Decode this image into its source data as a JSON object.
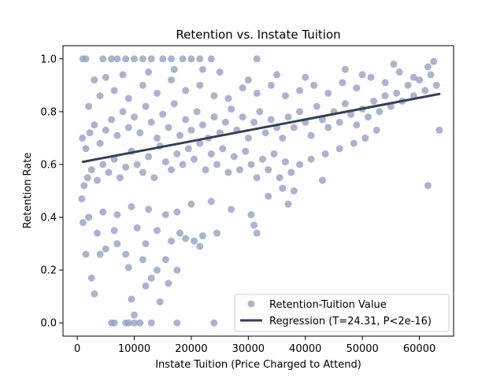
{
  "chart_data": {
    "type": "scatter",
    "title": "Retention vs. Instate Tuition",
    "xlabel": "Instate Tuition (Price Charged to Attend)",
    "ylabel": "Retention Rate",
    "xlim": [
      -2500,
      66000
    ],
    "ylim": [
      -0.05,
      1.05
    ],
    "xticks": [
      0,
      10000,
      20000,
      30000,
      40000,
      50000,
      60000
    ],
    "xtick_labels": [
      "0",
      "10000",
      "20000",
      "30000",
      "40000",
      "50000",
      "60000"
    ],
    "yticks": [
      0.0,
      0.2,
      0.4,
      0.6,
      0.8,
      1.0
    ],
    "ytick_labels": [
      "0.0",
      "0.2",
      "0.4",
      "0.6",
      "0.8",
      "1.0"
    ],
    "grid": false,
    "legend_position": "lower right",
    "colors": {
      "points": "#96a1c2",
      "regression": "#334155"
    },
    "series": [
      {
        "name": "Retention-Tuition Value",
        "kind": "scatter",
        "points": [
          [
            1000,
            1.0
          ],
          [
            1500,
            1.0
          ],
          [
            4500,
            1.0
          ],
          [
            6000,
            1.0
          ],
          [
            7000,
            1.0
          ],
          [
            8500,
            1.0
          ],
          [
            10000,
            1.0
          ],
          [
            11500,
            1.0
          ],
          [
            13000,
            1.0
          ],
          [
            15000,
            1.0
          ],
          [
            16500,
            1.0
          ],
          [
            18500,
            1.0
          ],
          [
            20000,
            1.0
          ],
          [
            21500,
            1.0
          ],
          [
            23500,
            1.0
          ],
          [
            31500,
            1.0
          ],
          [
            6000,
            0.0
          ],
          [
            6500,
            0.0
          ],
          [
            8500,
            0.0
          ],
          [
            9000,
            0.0
          ],
          [
            10000,
            0.0
          ],
          [
            11000,
            0.0
          ],
          [
            13000,
            0.0
          ],
          [
            17500,
            0.0
          ],
          [
            24000,
            0.0
          ],
          [
            10000,
            0.03
          ],
          [
            9500,
            0.09
          ],
          [
            14500,
            0.08
          ],
          [
            3000,
            0.11
          ],
          [
            2500,
            0.17
          ],
          [
            12000,
            0.14
          ],
          [
            16000,
            0.15
          ],
          [
            13000,
            0.17
          ],
          [
            17500,
            0.2
          ],
          [
            9000,
            0.21
          ],
          [
            14000,
            0.2
          ],
          [
            11500,
            0.24
          ],
          [
            15500,
            0.24
          ],
          [
            4000,
            0.26
          ],
          [
            5000,
            0.28
          ],
          [
            1500,
            0.26
          ],
          [
            8500,
            0.26
          ],
          [
            7000,
            0.3
          ],
          [
            12000,
            0.3
          ],
          [
            16500,
            0.31
          ],
          [
            19000,
            0.32
          ],
          [
            3500,
            0.34
          ],
          [
            6500,
            0.35
          ],
          [
            10500,
            0.36
          ],
          [
            14000,
            0.35
          ],
          [
            18000,
            0.34
          ],
          [
            22000,
            0.33
          ],
          [
            24500,
            0.34
          ],
          [
            20500,
            0.31
          ],
          [
            21500,
            0.29
          ],
          [
            31500,
            0.34
          ],
          [
            31000,
            0.37
          ],
          [
            37000,
            0.45
          ],
          [
            43000,
            0.54
          ],
          [
            1000,
            0.38
          ],
          [
            2000,
            0.4
          ],
          [
            4500,
            0.42
          ],
          [
            7000,
            0.41
          ],
          [
            9500,
            0.44
          ],
          [
            12500,
            0.43
          ],
          [
            15500,
            0.41
          ],
          [
            17500,
            0.42
          ],
          [
            20000,
            0.45
          ],
          [
            23500,
            0.46
          ],
          [
            27000,
            0.43
          ],
          [
            30500,
            0.41
          ],
          [
            33500,
            0.48
          ],
          [
            36000,
            0.51
          ],
          [
            38000,
            0.5
          ],
          [
            61500,
            0.52
          ],
          [
            800,
            0.47
          ],
          [
            1200,
            0.52
          ],
          [
            1800,
            0.55
          ],
          [
            2500,
            0.58
          ],
          [
            3500,
            0.54
          ],
          [
            4500,
            0.6
          ],
          [
            5500,
            0.57
          ],
          [
            6500,
            0.62
          ],
          [
            7500,
            0.55
          ],
          [
            8500,
            0.59
          ],
          [
            9500,
            0.65
          ],
          [
            10500,
            0.6
          ],
          [
            11500,
            0.57
          ],
          [
            12500,
            0.63
          ],
          [
            13500,
            0.55
          ],
          [
            14500,
            0.67
          ],
          [
            15500,
            0.61
          ],
          [
            16500,
            0.58
          ],
          [
            17500,
            0.64
          ],
          [
            18500,
            0.6
          ],
          [
            19500,
            0.66
          ],
          [
            20500,
            0.62
          ],
          [
            21500,
            0.68
          ],
          [
            22500,
            0.58
          ],
          [
            23500,
            0.64
          ],
          [
            24500,
            0.6
          ],
          [
            25500,
            0.66
          ],
          [
            26500,
            0.57
          ],
          [
            27500,
            0.63
          ],
          [
            28500,
            0.58
          ],
          [
            29500,
            0.65
          ],
          [
            30500,
            0.6
          ],
          [
            31500,
            0.55
          ],
          [
            32500,
            0.62
          ],
          [
            33500,
            0.58
          ],
          [
            34500,
            0.64
          ],
          [
            35500,
            0.55
          ],
          [
            36500,
            0.61
          ],
          [
            37500,
            0.57
          ],
          [
            39000,
            0.6
          ],
          [
            41000,
            0.62
          ],
          [
            43500,
            0.64
          ],
          [
            46000,
            0.66
          ],
          [
            48500,
            0.68
          ],
          [
            50500,
            0.7
          ],
          [
            52500,
            0.73
          ],
          [
            900,
            0.7
          ],
          [
            1500,
            0.66
          ],
          [
            2200,
            0.72
          ],
          [
            3000,
            0.75
          ],
          [
            4000,
            0.68
          ],
          [
            5000,
            0.73
          ],
          [
            6000,
            0.77
          ],
          [
            7000,
            0.71
          ],
          [
            8000,
            0.8
          ],
          [
            9000,
            0.74
          ],
          [
            10000,
            0.78
          ],
          [
            11000,
            0.72
          ],
          [
            12000,
            0.82
          ],
          [
            13000,
            0.76
          ],
          [
            14000,
            0.7
          ],
          [
            15000,
            0.79
          ],
          [
            16000,
            0.74
          ],
          [
            17000,
            0.83
          ],
          [
            18000,
            0.71
          ],
          [
            19000,
            0.77
          ],
          [
            20000,
            0.73
          ],
          [
            21000,
            0.8
          ],
          [
            22000,
            0.75
          ],
          [
            23000,
            0.7
          ],
          [
            24000,
            0.78
          ],
          [
            25000,
            0.72
          ],
          [
            26000,
            0.76
          ],
          [
            27000,
            0.81
          ],
          [
            28000,
            0.73
          ],
          [
            29000,
            0.78
          ],
          [
            30000,
            0.7
          ],
          [
            31000,
            0.76
          ],
          [
            32000,
            0.8
          ],
          [
            33000,
            0.72
          ],
          [
            34000,
            0.77
          ],
          [
            35000,
            0.74
          ],
          [
            36000,
            0.7
          ],
          [
            37000,
            0.78
          ],
          [
            38000,
            0.74
          ],
          [
            39000,
            0.8
          ],
          [
            40000,
            0.76
          ],
          [
            41000,
            0.71
          ],
          [
            42000,
            0.82
          ],
          [
            43000,
            0.77
          ],
          [
            44000,
            0.74
          ],
          [
            45000,
            0.8
          ],
          [
            46000,
            0.76
          ],
          [
            47000,
            0.83
          ],
          [
            48000,
            0.79
          ],
          [
            49000,
            0.75
          ],
          [
            50000,
            0.81
          ],
          [
            51000,
            0.78
          ],
          [
            52000,
            0.84
          ],
          [
            53000,
            0.8
          ],
          [
            54000,
            0.86
          ],
          [
            55000,
            0.82
          ],
          [
            56000,
            0.87
          ],
          [
            57000,
            0.84
          ],
          [
            58000,
            0.9
          ],
          [
            59000,
            0.86
          ],
          [
            60000,
            0.92
          ],
          [
            61000,
            0.88
          ],
          [
            62000,
            0.94
          ],
          [
            63000,
            0.9
          ],
          [
            63500,
            0.73
          ],
          [
            2000,
            0.82
          ],
          [
            4000,
            0.86
          ],
          [
            6500,
            0.88
          ],
          [
            9000,
            0.85
          ],
          [
            11500,
            0.9
          ],
          [
            14000,
            0.87
          ],
          [
            16500,
            0.92
          ],
          [
            19000,
            0.88
          ],
          [
            21500,
            0.9
          ],
          [
            24000,
            0.86
          ],
          [
            26500,
            0.85
          ],
          [
            29000,
            0.89
          ],
          [
            31500,
            0.87
          ],
          [
            34000,
            0.9
          ],
          [
            36500,
            0.86
          ],
          [
            39000,
            0.88
          ],
          [
            41500,
            0.9
          ],
          [
            44000,
            0.87
          ],
          [
            46500,
            0.91
          ],
          [
            49000,
            0.89
          ],
          [
            51500,
            0.93
          ],
          [
            54000,
            0.91
          ],
          [
            56500,
            0.95
          ],
          [
            59000,
            0.93
          ],
          [
            61500,
            0.97
          ],
          [
            62500,
            0.99
          ],
          [
            55500,
            0.98
          ],
          [
            50000,
            0.94
          ],
          [
            47000,
            0.96
          ],
          [
            40000,
            0.93
          ],
          [
            35000,
            0.94
          ],
          [
            30000,
            0.92
          ],
          [
            25000,
            0.95
          ],
          [
            22000,
            0.96
          ],
          [
            17000,
            0.96
          ],
          [
            12500,
            0.95
          ],
          [
            8000,
            0.94
          ],
          [
            5000,
            0.93
          ],
          [
            3000,
            0.92
          ]
        ]
      },
      {
        "name": "Regression (T=24.31, P<2e-16)",
        "kind": "line",
        "x": [
          1000,
          63500
        ],
        "y": [
          0.61,
          0.867
        ]
      }
    ]
  }
}
